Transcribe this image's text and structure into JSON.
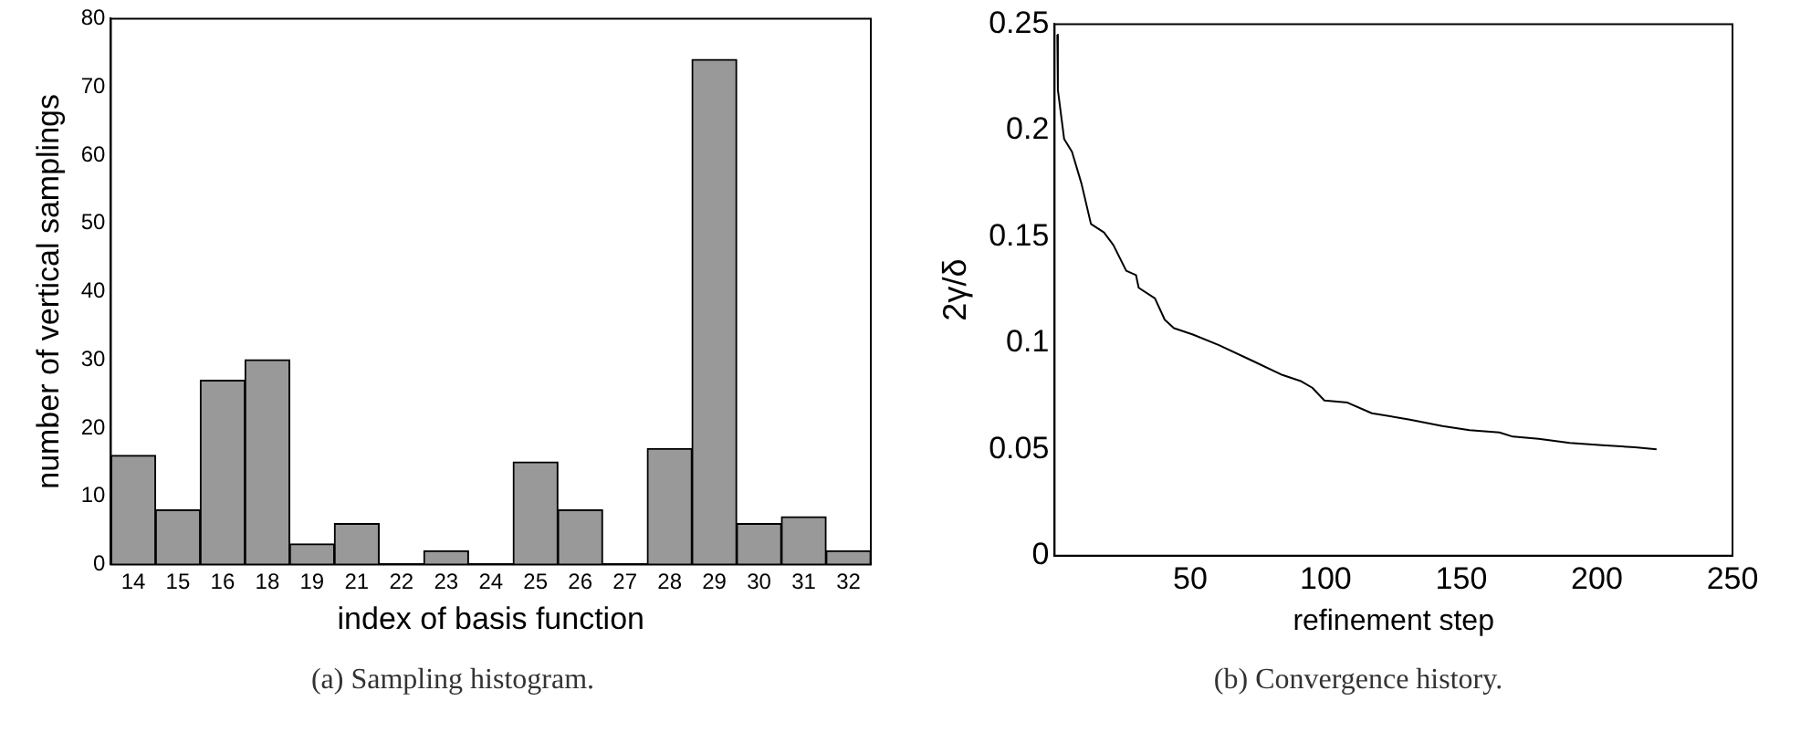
{
  "chart_data": [
    {
      "type": "bar",
      "categories": [
        "14",
        "15",
        "16",
        "18",
        "19",
        "21",
        "22",
        "23",
        "24",
        "25",
        "26",
        "27",
        "28",
        "29",
        "30",
        "31",
        "32"
      ],
      "values": [
        16,
        8,
        27,
        30,
        3,
        6,
        0,
        2,
        0,
        15,
        8,
        0,
        17,
        74,
        6,
        7,
        2
      ],
      "color": "#999999",
      "xlabel": "index of basis function",
      "ylabel": "number of vertical samplings",
      "ylim": [
        0,
        80
      ],
      "yticks": [
        0,
        10,
        20,
        30,
        40,
        50,
        60,
        70,
        80
      ],
      "grid": false,
      "annotations": [
        "(a) Sampling histogram."
      ]
    },
    {
      "type": "line",
      "color": "#000000",
      "marker": "none",
      "x": [
        1,
        1.2,
        3.5,
        6.4,
        9.9,
        13.4,
        18.2,
        21.7,
        26.4,
        30,
        31,
        37,
        40.6,
        44,
        51,
        60.6,
        72.4,
        84,
        91,
        95,
        99.5,
        108,
        117,
        131,
        143,
        153,
        164,
        169,
        178.5,
        190,
        202,
        214,
        222
      ],
      "values": [
        0.245,
        0.219,
        0.196,
        0.19,
        0.175,
        0.156,
        0.152,
        0.146,
        0.134,
        0.132,
        0.126,
        0.121,
        0.111,
        0.107,
        0.104,
        0.099,
        0.092,
        0.085,
        0.082,
        0.079,
        0.073,
        0.072,
        0.067,
        0.064,
        0.061,
        0.059,
        0.058,
        0.056,
        0.055,
        0.053,
        0.052,
        0.051,
        0.05
      ],
      "xlabel": "refinement step",
      "ylabel": "2γ/δ",
      "xlim": [
        0,
        250
      ],
      "xticks": [
        50,
        100,
        150,
        200,
        250
      ],
      "ylim": [
        0,
        0.25
      ],
      "yticks": [
        0,
        0.05,
        0.1,
        0.15,
        0.2,
        0.25
      ],
      "grid": false,
      "annotations": [
        "(b) Convergence history."
      ]
    }
  ]
}
